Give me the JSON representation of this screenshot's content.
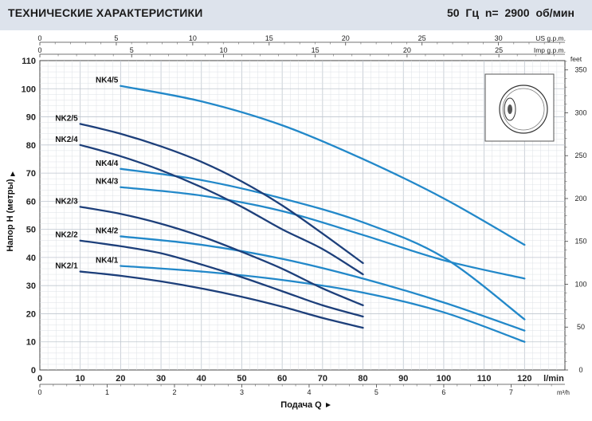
{
  "header": {
    "title": "ТЕХНИЧЕСКИЕ ХАРАКТЕРИСТИКИ",
    "conditions": "50 Гц    n= 2900 об/мин"
  },
  "chart_data": {
    "type": "line",
    "xlabel": "Подача Q",
    "ylabel": "Напор H (метры)",
    "xlim": [
      0,
      120
    ],
    "ylim": [
      0,
      110
    ],
    "x_unit": "l/min",
    "x_ticks": [
      0,
      10,
      20,
      30,
      40,
      50,
      60,
      70,
      80,
      90,
      100,
      110,
      120
    ],
    "y_ticks": [
      0,
      10,
      20,
      30,
      40,
      50,
      60,
      70,
      80,
      90,
      100,
      110
    ],
    "top_axes": [
      {
        "unit": "US g.p.m.",
        "ticks": [
          0,
          5,
          10,
          15,
          20,
          25,
          30
        ],
        "lpm_per_unit": 3.785
      },
      {
        "unit": "Imp g.p.m.",
        "ticks": [
          0,
          5,
          10,
          15,
          20,
          25
        ],
        "lpm_per_unit": 4.546
      }
    ],
    "bottom_axis": {
      "unit": "m³/h",
      "ticks": [
        0,
        1,
        2,
        3,
        4,
        5,
        6,
        7
      ],
      "lpm_per_unit": 16.667
    },
    "right_axis": {
      "unit": "feet",
      "ticks": [
        0,
        50,
        100,
        150,
        200,
        250,
        300,
        350
      ],
      "m_per_unit": 0.3048
    },
    "grid": true,
    "series": [
      {
        "name": "NK4/5",
        "color": "#2288c9",
        "x": [
          20,
          40,
          60,
          80,
          100,
          120
        ],
        "y": [
          101,
          95.5,
          87,
          75,
          61,
          44.5
        ]
      },
      {
        "name": "NK4/4",
        "color": "#2288c9",
        "x": [
          20,
          40,
          60,
          80,
          100,
          120
        ],
        "y": [
          71.5,
          67.5,
          61,
          52.5,
          40,
          18
        ]
      },
      {
        "name": "NK4/3",
        "color": "#2288c9",
        "x": [
          20,
          40,
          60,
          80,
          100,
          120
        ],
        "y": [
          65,
          62,
          56.5,
          48,
          39,
          32.5
        ]
      },
      {
        "name": "NK4/2",
        "color": "#2288c9",
        "x": [
          20,
          40,
          60,
          80,
          100,
          120
        ],
        "y": [
          47.5,
          44.5,
          39.5,
          32.5,
          24,
          14
        ]
      },
      {
        "name": "NK4/1",
        "color": "#2288c9",
        "x": [
          20,
          40,
          60,
          80,
          100,
          120
        ],
        "y": [
          37,
          35,
          32,
          27.5,
          20.5,
          10
        ]
      },
      {
        "name": "NK2/5",
        "color": "#1d3f7a",
        "x": [
          10,
          20,
          30,
          40,
          50,
          60,
          70,
          80
        ],
        "y": [
          87.5,
          84,
          79.5,
          74,
          67,
          58.5,
          48.5,
          38
        ]
      },
      {
        "name": "NK2/4",
        "color": "#1d3f7a",
        "x": [
          10,
          20,
          30,
          40,
          50,
          60,
          70,
          80
        ],
        "y": [
          80,
          76,
          71,
          65,
          58,
          50,
          43,
          34
        ]
      },
      {
        "name": "NK2/3",
        "color": "#1d3f7a",
        "x": [
          10,
          20,
          30,
          40,
          50,
          60,
          70,
          80
        ],
        "y": [
          58,
          55.5,
          52,
          47.5,
          42,
          36,
          29,
          23
        ]
      },
      {
        "name": "NK2/2",
        "color": "#1d3f7a",
        "x": [
          10,
          20,
          30,
          40,
          50,
          60,
          70,
          80
        ],
        "y": [
          46,
          44,
          41.5,
          37.5,
          33,
          28,
          23,
          19
        ]
      },
      {
        "name": "NK2/1",
        "color": "#1d3f7a",
        "x": [
          10,
          20,
          30,
          40,
          50,
          60,
          70,
          80
        ],
        "y": [
          35,
          33.5,
          31.5,
          29,
          26,
          22.5,
          18.5,
          15
        ]
      }
    ]
  }
}
